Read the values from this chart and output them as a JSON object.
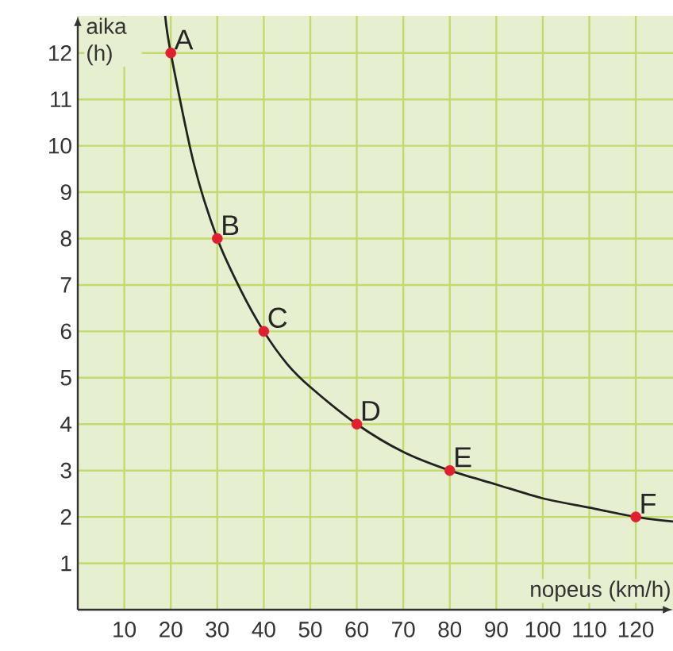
{
  "chart_data": {
    "type": "line",
    "xlabel": "nopeus (km/h)",
    "ylabel": "aika (h)",
    "xlim": [
      0,
      128
    ],
    "ylim": [
      0,
      12.8
    ],
    "xticks": [
      10,
      20,
      30,
      40,
      50,
      60,
      70,
      80,
      90,
      100,
      110,
      120
    ],
    "yticks": [
      1,
      2,
      3,
      4,
      5,
      6,
      7,
      8,
      9,
      10,
      11,
      12
    ],
    "grid": true,
    "series": [
      {
        "color": "#222222",
        "marker": "none",
        "x": [
          18.8,
          20,
          25,
          30,
          35,
          40,
          45,
          50,
          60,
          70,
          80,
          90,
          100,
          110,
          120,
          128
        ],
        "values": [
          12.8,
          12,
          9.6,
          8,
          6.9,
          6,
          5.3,
          4.8,
          4,
          3.4,
          3,
          2.7,
          2.4,
          2.2,
          2,
          1.9
        ]
      },
      {
        "type": "scatter",
        "color": "#e02030",
        "marker": "circle",
        "x": [
          20,
          30,
          40,
          60,
          80,
          120
        ],
        "values": [
          12,
          8,
          6,
          4,
          3,
          2
        ]
      }
    ],
    "annotations": [
      {
        "text": "A",
        "x": 20,
        "y": 12
      },
      {
        "text": "B",
        "x": 30,
        "y": 8
      },
      {
        "text": "C",
        "x": 40,
        "y": 6
      },
      {
        "text": "D",
        "x": 60,
        "y": 4
      },
      {
        "text": "E",
        "x": 80,
        "y": 3
      },
      {
        "text": "F",
        "x": 120,
        "y": 2
      }
    ]
  }
}
